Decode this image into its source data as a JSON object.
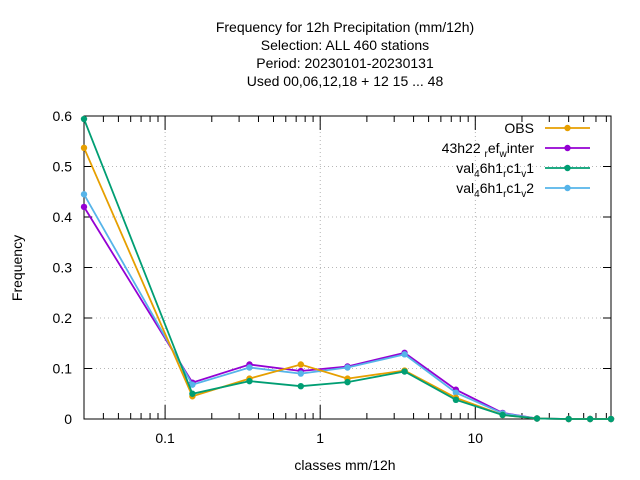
{
  "chart_data": {
    "type": "line",
    "title_lines": [
      "Frequency  for 12h Precipitation (mm/12h)",
      "Selection: ALL    460 stations",
      "Period: 20230101-20230131",
      "Used  00,06,12,18  + 12 15 ... 48"
    ],
    "xlabel": "classes mm/12h",
    "ylabel": "Frequency",
    "x_scale": "log",
    "xlim": [
      0.03,
      75
    ],
    "ylim": [
      0,
      0.6
    ],
    "x_ticks": [
      {
        "value": 0.1,
        "label": "0.1"
      },
      {
        "value": 1,
        "label": "1"
      },
      {
        "value": 10,
        "label": "10"
      }
    ],
    "y_ticks": [
      {
        "value": 0,
        "label": "0"
      },
      {
        "value": 0.1,
        "label": "0.1"
      },
      {
        "value": 0.2,
        "label": "0.2"
      },
      {
        "value": 0.3,
        "label": "0.3"
      },
      {
        "value": 0.4,
        "label": "0.4"
      },
      {
        "value": 0.5,
        "label": "0.5"
      },
      {
        "value": 0.6,
        "label": "0.6"
      }
    ],
    "grid": true,
    "legend_position": "top-right",
    "x": [
      0.03,
      0.15,
      0.35,
      0.75,
      1.5,
      3.5,
      7.5,
      15,
      25,
      40,
      55,
      75
    ],
    "series": [
      {
        "name_parts": [
          [
            "43h22 ",
            "n"
          ],
          [
            "r",
            "sub"
          ],
          [
            "ef",
            "n"
          ],
          [
            "w",
            "sub"
          ],
          [
            "inter",
            "n"
          ]
        ],
        "color": "#9400d3",
        "values": [
          0.42,
          0.072,
          0.108,
          0.095,
          0.104,
          0.131,
          0.058,
          0.012,
          0.001,
          0.0,
          0.0,
          0.0
        ]
      },
      {
        "name_parts": [
          [
            "val",
            "n"
          ],
          [
            "4",
            "sub"
          ],
          [
            "6h1",
            "n"
          ],
          [
            "r",
            "sub"
          ],
          [
            "c1",
            "n"
          ],
          [
            "v",
            "sub"
          ],
          [
            "2",
            "n"
          ]
        ],
        "color": "#56b4e9",
        "values": [
          0.445,
          0.068,
          0.102,
          0.09,
          0.102,
          0.128,
          0.052,
          0.011,
          0.001,
          0.0,
          0.0,
          0.0
        ]
      },
      {
        "name": "OBS",
        "color": "#e69f00",
        "values": [
          0.537,
          0.045,
          0.08,
          0.108,
          0.08,
          0.096,
          0.042,
          0.008,
          0.001,
          0.0,
          0.0,
          0.0
        ]
      },
      {
        "name_parts": [
          [
            "val",
            "n"
          ],
          [
            "4",
            "sub"
          ],
          [
            "6h1",
            "n"
          ],
          [
            "r",
            "sub"
          ],
          [
            "c1",
            "n"
          ],
          [
            "v",
            "sub"
          ],
          [
            "1",
            "n"
          ]
        ],
        "color": "#009e73",
        "values": [
          0.594,
          0.05,
          0.075,
          0.065,
          0.073,
          0.094,
          0.038,
          0.008,
          0.001,
          0.0,
          0.0,
          0.0
        ]
      }
    ],
    "legend_order": [
      2,
      0,
      3,
      1
    ]
  }
}
